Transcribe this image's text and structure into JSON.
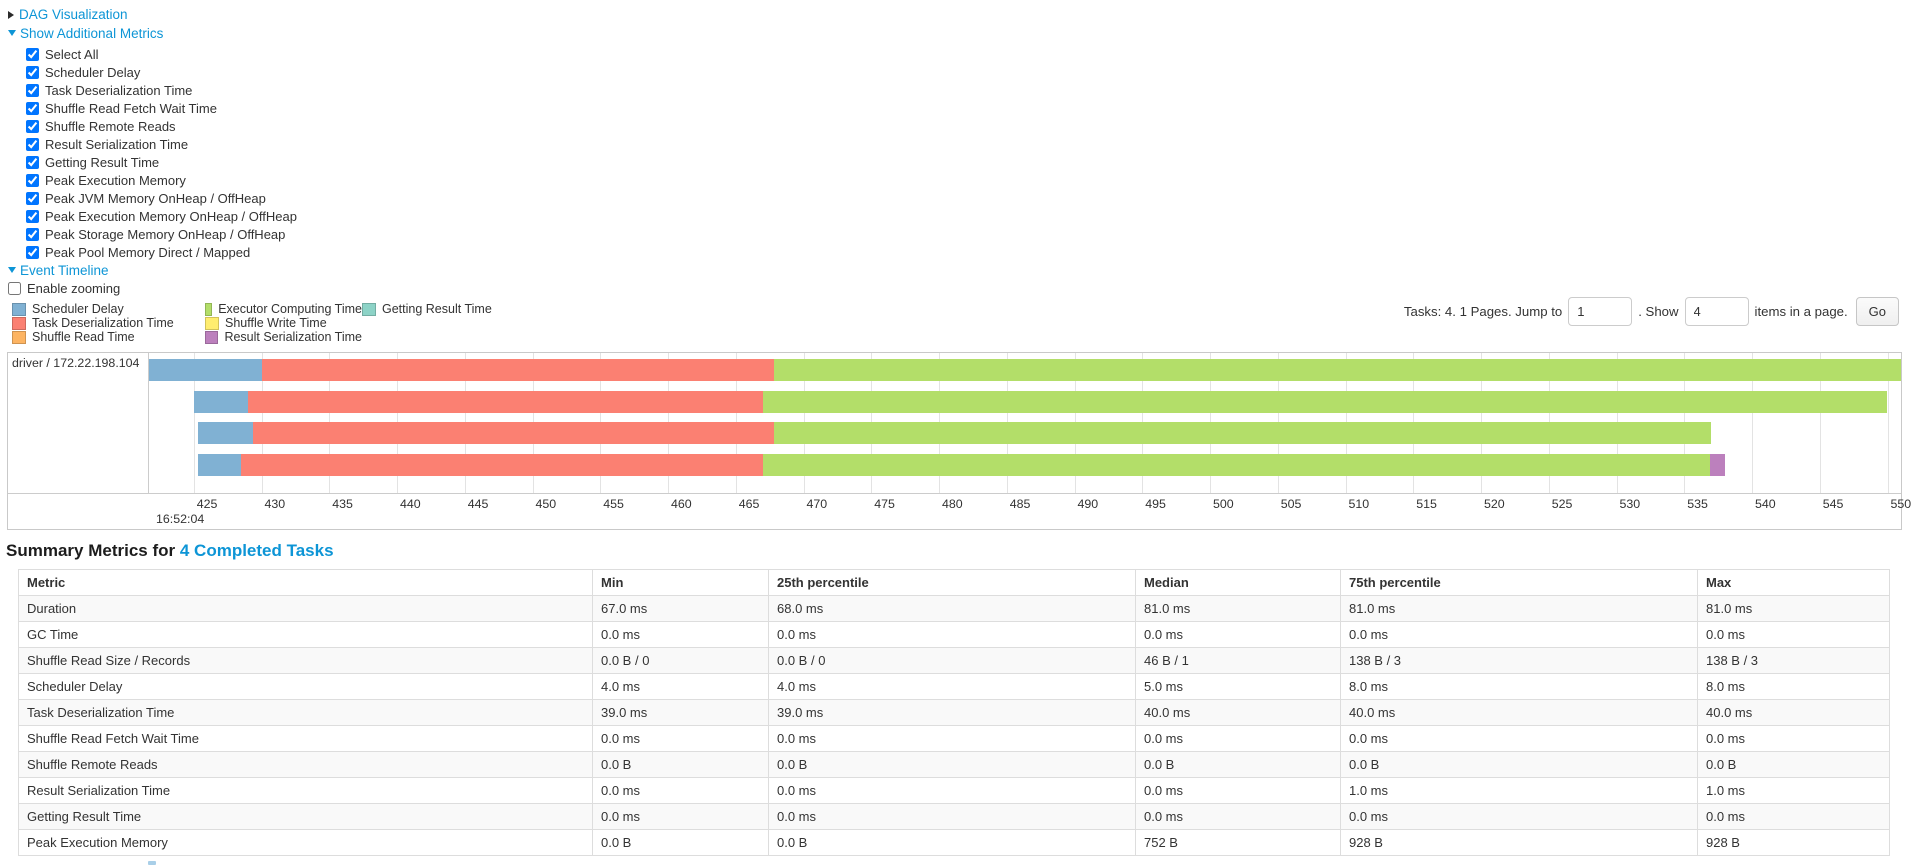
{
  "toggles": {
    "dag_visualization": "DAG Visualization",
    "show_additional_metrics": "Show Additional Metrics",
    "event_timeline": "Event Timeline",
    "enable_zooming": "Enable zooming"
  },
  "metrics_panel": {
    "items": [
      {
        "label": "Select All",
        "checked": true
      },
      {
        "label": "Scheduler Delay",
        "checked": true
      },
      {
        "label": "Task Deserialization Time",
        "checked": true
      },
      {
        "label": "Shuffle Read Fetch Wait Time",
        "checked": true
      },
      {
        "label": "Shuffle Remote Reads",
        "checked": true
      },
      {
        "label": "Result Serialization Time",
        "checked": true
      },
      {
        "label": "Getting Result Time",
        "checked": true
      },
      {
        "label": "Peak Execution Memory",
        "checked": true
      },
      {
        "label": "Peak JVM Memory OnHeap / OffHeap",
        "checked": true
      },
      {
        "label": "Peak Execution Memory OnHeap / OffHeap",
        "checked": true
      },
      {
        "label": "Peak Storage Memory OnHeap / OffHeap",
        "checked": true
      },
      {
        "label": "Peak Pool Memory Direct / Mapped",
        "checked": true
      }
    ]
  },
  "colors": {
    "scheduler_delay": "#80B1D3",
    "task_deserialization": "#FB8072",
    "shuffle_read": "#FDB462",
    "executor_computing": "#B3DE69",
    "shuffle_write": "#FFED6F",
    "result_serialization": "#BC80BD",
    "getting_result": "#8DD3C7",
    "link": "#0d95d6"
  },
  "legend": {
    "columns": [
      [
        {
          "label": "Scheduler Delay",
          "color_key": "scheduler_delay"
        },
        {
          "label": "Task Deserialization Time",
          "color_key": "task_deserialization"
        },
        {
          "label": "Shuffle Read Time",
          "color_key": "shuffle_read"
        }
      ],
      [
        {
          "label": "Executor Computing Time",
          "color_key": "executor_computing"
        },
        {
          "label": "Shuffle Write Time",
          "color_key": "shuffle_write"
        },
        {
          "label": "Result Serialization Time",
          "color_key": "result_serialization"
        }
      ],
      [
        {
          "label": "Getting Result Time",
          "color_key": "getting_result"
        }
      ]
    ]
  },
  "pagination": {
    "summary_text": "Tasks: 4. 1 Pages. Jump to",
    "jump_value": "1",
    "show_label": ". Show",
    "page_size_value": "4",
    "suffix_text": "items in a page.",
    "go_label": "Go"
  },
  "chart_data": {
    "type": "timeline",
    "group_label": "driver / 172.22.198.104",
    "axis": {
      "min": 421.7,
      "max": 551.0,
      "tick_start": 425,
      "tick_end": 550,
      "tick_step": 5,
      "time_label": "16:52:04"
    },
    "tasks": [
      {
        "segments": [
          {
            "type": "scheduler_delay",
            "start": 421.7,
            "end": 430.0
          },
          {
            "type": "task_deserialization",
            "start": 430.0,
            "end": 467.8
          },
          {
            "type": "executor_computing",
            "start": 467.8,
            "end": 551.0
          }
        ]
      },
      {
        "segments": [
          {
            "type": "scheduler_delay",
            "start": 425.0,
            "end": 429.0
          },
          {
            "type": "task_deserialization",
            "start": 429.0,
            "end": 467.0
          },
          {
            "type": "executor_computing",
            "start": 467.0,
            "end": 550.0
          }
        ]
      },
      {
        "segments": [
          {
            "type": "scheduler_delay",
            "start": 425.3,
            "end": 429.4
          },
          {
            "type": "task_deserialization",
            "start": 429.4,
            "end": 467.8
          },
          {
            "type": "executor_computing",
            "start": 467.8,
            "end": 537.0
          }
        ]
      },
      {
        "segments": [
          {
            "type": "scheduler_delay",
            "start": 425.3,
            "end": 428.5
          },
          {
            "type": "task_deserialization",
            "start": 428.5,
            "end": 467.0
          },
          {
            "type": "executor_computing",
            "start": 467.0,
            "end": 536.9
          },
          {
            "type": "result_serialization",
            "start": 536.9,
            "end": 538.0
          }
        ]
      }
    ]
  },
  "summary": {
    "title_prefix": "Summary Metrics for",
    "title_link": "4 Completed Tasks",
    "columns": [
      "Metric",
      "Min",
      "25th percentile",
      "Median",
      "75th percentile",
      "Max"
    ],
    "rows": [
      [
        "Duration",
        "67.0 ms",
        "68.0 ms",
        "81.0 ms",
        "81.0 ms",
        "81.0 ms"
      ],
      [
        "GC Time",
        "0.0 ms",
        "0.0 ms",
        "0.0 ms",
        "0.0 ms",
        "0.0 ms"
      ],
      [
        "Shuffle Read Size / Records",
        "0.0 B / 0",
        "0.0 B / 0",
        "46 B / 1",
        "138 B / 3",
        "138 B / 3"
      ],
      [
        "Scheduler Delay",
        "4.0 ms",
        "4.0 ms",
        "5.0 ms",
        "8.0 ms",
        "8.0 ms"
      ],
      [
        "Task Deserialization Time",
        "39.0 ms",
        "39.0 ms",
        "40.0 ms",
        "40.0 ms",
        "40.0 ms"
      ],
      [
        "Shuffle Read Fetch Wait Time",
        "0.0 ms",
        "0.0 ms",
        "0.0 ms",
        "0.0 ms",
        "0.0 ms"
      ],
      [
        "Shuffle Remote Reads",
        "0.0 B",
        "0.0 B",
        "0.0 B",
        "0.0 B",
        "0.0 B"
      ],
      [
        "Result Serialization Time",
        "0.0 ms",
        "0.0 ms",
        "0.0 ms",
        "1.0 ms",
        "1.0 ms"
      ],
      [
        "Getting Result Time",
        "0.0 ms",
        "0.0 ms",
        "0.0 ms",
        "0.0 ms",
        "0.0 ms"
      ],
      [
        "Peak Execution Memory",
        "0.0 B",
        "0.0 B",
        "752 B",
        "928 B",
        "928 B"
      ]
    ]
  }
}
